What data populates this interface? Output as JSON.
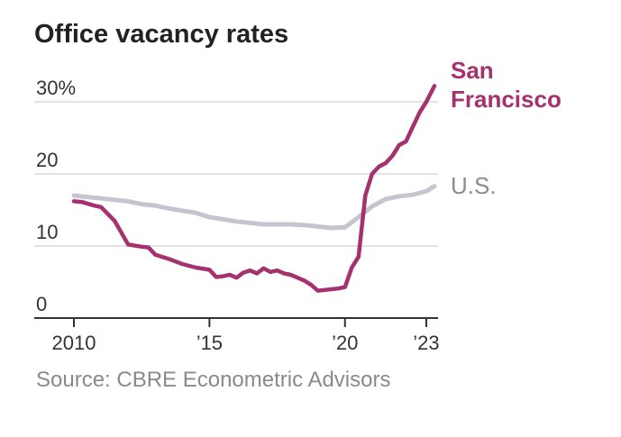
{
  "title": "Office vacancy rates",
  "source": "Source: CBRE Econometric Advisors",
  "chart_data": {
    "type": "line",
    "title": "Office vacancy rates",
    "xlabel": "",
    "ylabel": "",
    "xlim": [
      2010,
      2023.3
    ],
    "ylim": [
      0,
      32
    ],
    "y_ticks": [
      {
        "value": 0,
        "label": "0"
      },
      {
        "value": 10,
        "label": "10"
      },
      {
        "value": 20,
        "label": "20"
      },
      {
        "value": 30,
        "label": "30%"
      }
    ],
    "x_ticks": [
      {
        "value": 2010,
        "label": "2010"
      },
      {
        "value": 2015,
        "label": "’15"
      },
      {
        "value": 2020,
        "label": "’20"
      },
      {
        "value": 2023,
        "label": "’23"
      }
    ],
    "grid": "horizontal",
    "series": [
      {
        "name": "U.S.",
        "label_lines": [
          "U.S."
        ],
        "color": "#c5c5d2",
        "x": [
          2010,
          2010.5,
          2011,
          2011.5,
          2012,
          2012.5,
          2013,
          2013.5,
          2014,
          2014.5,
          2015,
          2015.5,
          2016,
          2016.5,
          2017,
          2017.5,
          2018,
          2018.5,
          2019,
          2019.5,
          2020,
          2020.5,
          2021,
          2021.5,
          2022,
          2022.5,
          2023,
          2023.3
        ],
        "y": [
          17.0,
          16.8,
          16.6,
          16.4,
          16.2,
          15.8,
          15.6,
          15.2,
          14.9,
          14.6,
          14.0,
          13.7,
          13.4,
          13.2,
          13.0,
          13.0,
          13.0,
          12.9,
          12.7,
          12.5,
          12.6,
          14.0,
          15.5,
          16.5,
          16.9,
          17.1,
          17.6,
          18.3
        ]
      },
      {
        "name": "San Francisco",
        "label_lines": [
          "San",
          "Francisco"
        ],
        "color": "#a5316e",
        "x": [
          2010,
          2010.3,
          2010.75,
          2011,
          2011.5,
          2012,
          2012.5,
          2012.75,
          2013,
          2013.5,
          2014,
          2014.5,
          2015,
          2015.25,
          2015.5,
          2015.75,
          2016,
          2016.25,
          2016.5,
          2016.75,
          2017,
          2017.25,
          2017.5,
          2017.75,
          2018,
          2018.25,
          2018.5,
          2018.75,
          2019,
          2019.25,
          2019.5,
          2019.75,
          2020,
          2020.25,
          2020.5,
          2020.75,
          2021,
          2021.25,
          2021.5,
          2021.75,
          2022,
          2022.25,
          2022.5,
          2022.75,
          2023,
          2023.3
        ],
        "y": [
          16.2,
          16.1,
          15.6,
          15.4,
          13.5,
          10.2,
          9.9,
          9.8,
          8.8,
          8.2,
          7.5,
          7.0,
          6.7,
          5.7,
          5.8,
          6.0,
          5.6,
          6.3,
          6.6,
          6.2,
          6.9,
          6.4,
          6.6,
          6.2,
          6.0,
          5.6,
          5.2,
          4.6,
          3.8,
          3.9,
          4.0,
          4.1,
          4.3,
          7.0,
          8.5,
          17.0,
          20.0,
          21.0,
          21.5,
          22.5,
          24.0,
          24.5,
          26.5,
          28.5,
          30.0,
          32.2
        ]
      }
    ]
  }
}
